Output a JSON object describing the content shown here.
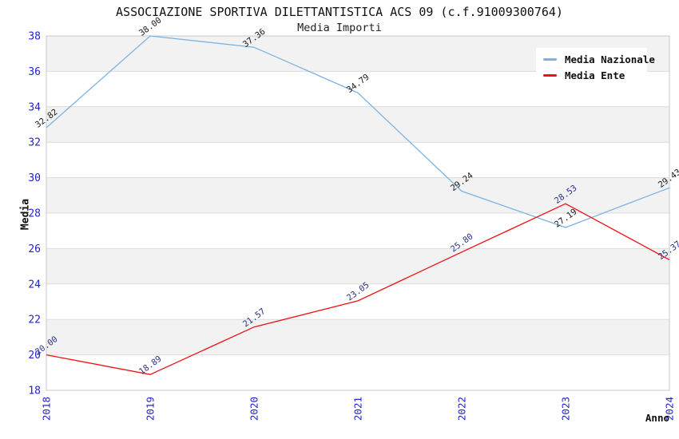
{
  "page": {
    "title": "ASSOCIAZIONE SPORTIVA DILETTANTISTICA ACS 09 (c.f.91009300764)",
    "subtitle": "Media Importi"
  },
  "chart_data": {
    "type": "line",
    "title": "ASSOCIAZIONE SPORTIVA DILETTANTISTICA ACS 09 (c.f.91009300764)",
    "subtitle": "Media Importi",
    "xlabel": "Anno",
    "ylabel": "Media",
    "categories": [
      "2018",
      "2019",
      "2020",
      "2021",
      "2022",
      "2023",
      "2024"
    ],
    "series": [
      {
        "name": "Media Nazionale",
        "color": "#7cb2e3",
        "label_color": "#1a1a1a",
        "values": [
          32.82,
          38.0,
          37.36,
          34.79,
          29.24,
          27.19,
          29.43
        ]
      },
      {
        "name": "Media Ente",
        "color": "#ee1111",
        "label_color": "#2a338c",
        "values": [
          20.0,
          18.89,
          21.57,
          23.05,
          25.8,
          28.53,
          25.37
        ]
      }
    ],
    "ylim": [
      18,
      38
    ],
    "ytick_step": 2,
    "yticks": [
      18,
      20,
      22,
      24,
      26,
      28,
      30,
      32,
      34,
      36,
      38
    ],
    "value_label_decimals": 2,
    "grid": true,
    "legend_position": "top-right",
    "colors": {
      "tick_label": "#2222cc",
      "band_fill": "#f2f2f2",
      "gridline": "#dcdcdc",
      "frame": "#c8c8c8"
    }
  }
}
